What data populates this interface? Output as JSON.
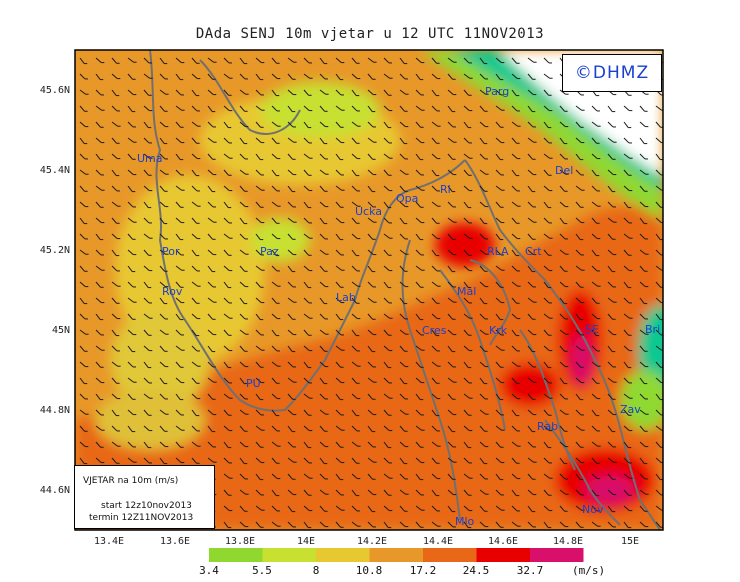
{
  "title": "DAda SENJ 10m vjetar u 12 UTC 11NOV2013",
  "logo": "©DHMZ",
  "legend": {
    "line1": "VJETAR na 10m (m/s)",
    "line2": "start 12z10nov2013",
    "line3": "termin 12Z11NOV2013"
  },
  "axes": {
    "y_ticks": [
      "45.6N",
      "45.4N",
      "45.2N",
      "45N",
      "44.8N",
      "44.6N"
    ],
    "x_ticks": [
      "13.4E",
      "13.6E",
      "13.8E",
      "14E",
      "14.2E",
      "14.4E",
      "14.6E",
      "14.8E",
      "15E"
    ]
  },
  "colorbar": {
    "labels": [
      "3.4",
      "5.5",
      "8",
      "10.8",
      "17.2",
      "24.5",
      "32.7"
    ],
    "unit": "(m/s)",
    "colors": [
      "#10c890",
      "#90d830",
      "#c8e030",
      "#e8c830",
      "#e89828",
      "#e86818",
      "#e80000",
      "#d8106c"
    ]
  },
  "places": [
    {
      "name": "Parg"
    },
    {
      "name": "Del"
    },
    {
      "name": "Rl"
    },
    {
      "name": "Opa"
    },
    {
      "name": "Ucka"
    },
    {
      "name": "Uma"
    },
    {
      "name": "Paz"
    },
    {
      "name": "Por"
    },
    {
      "name": "Rov"
    },
    {
      "name": "Lab"
    },
    {
      "name": "PU"
    },
    {
      "name": "Mal"
    },
    {
      "name": "Cres"
    },
    {
      "name": "Krk"
    },
    {
      "name": "SE"
    },
    {
      "name": "Bri"
    },
    {
      "name": "Zav"
    },
    {
      "name": "Rab"
    },
    {
      "name": "Nov"
    },
    {
      "name": "Mlo"
    },
    {
      "name": "RLA"
    },
    {
      "name": "Crt"
    }
  ],
  "colors": {
    "base": "#e89828",
    "land_contour": "#707070",
    "place_text": "#1a40d0",
    "arrow": "#1a1a1a"
  }
}
